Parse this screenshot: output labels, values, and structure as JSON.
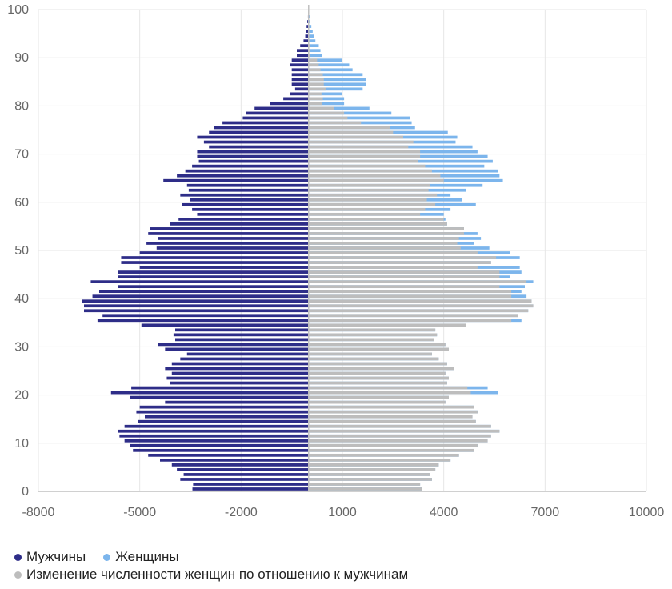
{
  "chart_data": {
    "type": "bar",
    "orientation": "horizontal",
    "xlim": [
      -8000,
      10000
    ],
    "ylim": [
      0,
      100
    ],
    "x_ticks": [
      "-8000",
      "-5000",
      "-2000",
      "1000",
      "4000",
      "7000",
      "10000"
    ],
    "y_ticks": [
      "0",
      "10",
      "20",
      "30",
      "40",
      "50",
      "60",
      "70",
      "80",
      "90",
      "100"
    ],
    "grid": true,
    "legend_position": "bottom-left",
    "colors": {
      "men": "#2e2d88",
      "women": "#7cb5ec",
      "diff": "#bdbdbd",
      "grid": "#e6e6e6",
      "axis": "#c0c0c0",
      "tick_text": "#666666"
    },
    "ages": [
      0,
      1,
      2,
      3,
      4,
      5,
      6,
      7,
      8,
      9,
      10,
      11,
      12,
      13,
      14,
      15,
      16,
      17,
      18,
      19,
      20,
      21,
      22,
      23,
      24,
      25,
      26,
      27,
      28,
      29,
      30,
      31,
      32,
      33,
      34,
      35,
      36,
      37,
      38,
      39,
      40,
      41,
      42,
      43,
      44,
      45,
      46,
      47,
      48,
      49,
      50,
      51,
      52,
      53,
      54,
      55,
      56,
      57,
      58,
      59,
      60,
      61,
      62,
      63,
      64,
      65,
      66,
      67,
      68,
      69,
      70,
      71,
      72,
      73,
      74,
      75,
      76,
      77,
      78,
      79,
      80,
      81,
      82,
      83,
      84,
      85,
      86,
      87,
      88,
      89,
      90,
      91,
      92,
      93,
      94,
      95,
      96,
      97,
      98,
      99
    ],
    "series": [
      {
        "name": "Мужчины",
        "values": [
          -3440,
          -3420,
          -3800,
          -3700,
          -3900,
          -4050,
          -4400,
          -4750,
          -5200,
          -5300,
          -5450,
          -5600,
          -5650,
          -5450,
          -5050,
          -4850,
          -5100,
          -5000,
          -4250,
          -5300,
          -5850,
          -5250,
          -4100,
          -4200,
          -4050,
          -4250,
          -4050,
          -3800,
          -3600,
          -4250,
          -4450,
          -3950,
          -4000,
          -3950,
          -4950,
          -6250,
          -6100,
          -6650,
          -6650,
          -6700,
          -6400,
          -6200,
          -5650,
          -6450,
          -5650,
          -5650,
          -5000,
          -5550,
          -5550,
          -5000,
          -4500,
          -4800,
          -4450,
          -4750,
          -4700,
          -4100,
          -3850,
          -3300,
          -3450,
          -3750,
          -3500,
          -3800,
          -3550,
          -3600,
          -4300,
          -3900,
          -3650,
          -3450,
          -3250,
          -3300,
          -3300,
          -2950,
          -3100,
          -3300,
          -2950,
          -2800,
          -2550,
          -1950,
          -1850,
          -1600,
          -1150,
          -750,
          -550,
          -400,
          -500,
          -500,
          -500,
          -500,
          -550,
          -500,
          -350,
          -350,
          -250,
          -150,
          -100,
          -80,
          -60,
          -40,
          -20,
          -10
        ]
      },
      {
        "name": "Женщины",
        "values": [
          3350,
          3300,
          3650,
          3600,
          3750,
          3850,
          4200,
          4450,
          4900,
          5000,
          5300,
          5400,
          5650,
          5400,
          4950,
          4850,
          5000,
          4900,
          4050,
          4150,
          5600,
          5300,
          4100,
          4150,
          4050,
          4300,
          4100,
          3850,
          3650,
          4150,
          4050,
          3700,
          3800,
          3750,
          4650,
          6300,
          6200,
          6500,
          6650,
          6600,
          6450,
          6300,
          6400,
          6650,
          5950,
          6300,
          6250,
          5400,
          6250,
          5950,
          5350,
          4900,
          5100,
          5000,
          4600,
          4100,
          4050,
          4000,
          4200,
          4950,
          4550,
          4200,
          4650,
          5150,
          5750,
          5650,
          5600,
          5200,
          5450,
          5300,
          5000,
          4850,
          4350,
          4400,
          4120,
          3150,
          3050,
          3000,
          2450,
          1800,
          1050,
          1050,
          1000,
          1600,
          1700,
          1700,
          1600,
          1300,
          1200,
          1000,
          400,
          350,
          300,
          200,
          160,
          120,
          80,
          50,
          30,
          15
        ]
      },
      {
        "name": "Изменение численности женщин по отношению к мужчинам",
        "values": [
          3350,
          3300,
          3650,
          3600,
          3750,
          3850,
          4200,
          4450,
          4900,
          5000,
          5300,
          5400,
          5650,
          5400,
          4950,
          4850,
          5000,
          4900,
          4050,
          4150,
          4800,
          4700,
          4100,
          4150,
          4050,
          4300,
          4100,
          3850,
          3650,
          4150,
          4050,
          3700,
          3800,
          3750,
          4650,
          6000,
          6200,
          6500,
          6650,
          6600,
          6000,
          6000,
          5650,
          6450,
          5650,
          5650,
          5000,
          5400,
          5550,
          5000,
          4500,
          4400,
          4450,
          4600,
          4600,
          4100,
          4000,
          3300,
          3450,
          3750,
          3500,
          3800,
          3550,
          3600,
          4000,
          3900,
          3650,
          3450,
          3250,
          3300,
          3300,
          2950,
          3100,
          2800,
          2500,
          2400,
          1550,
          1150,
          1050,
          750,
          400,
          420,
          380,
          500,
          450,
          450,
          420,
          350,
          300,
          250,
          50,
          40,
          30,
          20,
          15,
          10,
          8,
          5,
          3,
          2
        ]
      }
    ],
    "legend": {
      "men": "Мужчины",
      "women": "Женщины",
      "diff": "Изменение численности женщин по отношению к мужчинам"
    }
  }
}
